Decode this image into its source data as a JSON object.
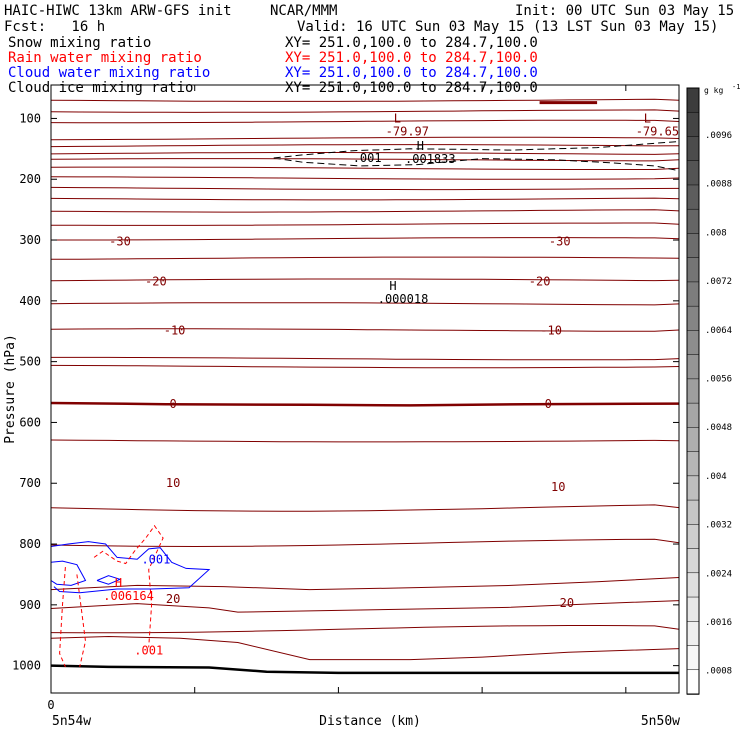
{
  "header": {
    "model": "HAIC-HIWC 13km ARW-GFS init",
    "org": "NCAR/MMM",
    "init": "Init: 00 UTC Sun 03 May 15",
    "fcst": "Fcst:   16 h",
    "valid": "Valid: 16 UTC Sun 03 May 15 (13 LST Sun 03 May 15)"
  },
  "fields": [
    {
      "name": "Snow mixing ratio",
      "xy": "XY= 251.0,100.0 to 284.7,100.0",
      "color": "#000000"
    },
    {
      "name": "Rain water mixing ratio",
      "xy": "XY= 251.0,100.0 to 284.7,100.0",
      "color": "#ff0000"
    },
    {
      "name": "Cloud water mixing ratio",
      "xy": "XY= 251.0,100.0 to 284.7,100.0",
      "color": "#0000ff"
    },
    {
      "name": "Cloud ice mixing ratio",
      "xy": "XY= 251.0,100.0 to 284.7,100.0",
      "color": "#000000"
    }
  ],
  "chart_data": {
    "type": "cross-section contour",
    "ylabel": "Pressure (hPa)",
    "xlabel": "Distance (km)",
    "x_tick_labels": [
      "0"
    ],
    "x_end_labels": {
      "left": "5n54w",
      "right": "5n50w"
    },
    "y_ticks": [
      100,
      200,
      300,
      400,
      500,
      600,
      700,
      800,
      900,
      1000
    ],
    "ylim": [
      1045,
      45
    ],
    "xlim": [
      0,
      437
    ],
    "x_grid_ticks": [
      0,
      100,
      200,
      300,
      400
    ],
    "colorbar": {
      "unit": "g kg",
      "unit_exp": "-1",
      "labels": [
        ".0096",
        ".0088",
        ".008",
        ".0072",
        ".0064",
        ".0056",
        ".0048",
        ".004",
        ".0032",
        ".0024",
        ".0016",
        ".0008"
      ]
    },
    "temperature_labels": [
      {
        "text": "-30",
        "x": 48,
        "p": 302
      },
      {
        "text": "-30",
        "x": 354,
        "p": 302
      },
      {
        "text": "-20",
        "x": 73,
        "p": 368
      },
      {
        "text": "-20",
        "x": 340,
        "p": 368
      },
      {
        "text": "-10",
        "x": 86,
        "p": 449
      },
      {
        "text": "-10",
        "x": 348,
        "p": 449
      },
      {
        "text": "0",
        "x": 85,
        "p": 570
      },
      {
        "text": "0",
        "x": 346,
        "p": 570
      },
      {
        "text": "10",
        "x": 85,
        "p": 700
      },
      {
        "text": "10",
        "x": 353,
        "p": 706
      },
      {
        "text": "20",
        "x": 85,
        "p": 890
      },
      {
        "text": "20",
        "x": 359,
        "p": 897
      }
    ],
    "extrema": [
      {
        "mark": "L",
        "value": "-79.97",
        "x": 241,
        "p": 120
      },
      {
        "mark": "L",
        "value": "-79.65",
        "x": 415,
        "p": 120
      },
      {
        "mark": "H",
        "value": ".001833",
        "x": 257,
        "p": 165
      },
      {
        "mark": "H",
        "value": ".000018",
        "x": 238,
        "p": 395
      },
      {
        "mark": "H",
        "value": ".006164",
        "x": 47,
        "p": 884
      }
    ],
    "contour_labels": [
      {
        "text": ".001",
        "x": 220,
        "p": 172,
        "color": "#000000"
      },
      {
        "text": ".001",
        "x": 73,
        "p": 832,
        "color": "#0000ff"
      },
      {
        "text": ".001",
        "x": 68,
        "p": 982,
        "color": "#ff0000"
      }
    ]
  }
}
